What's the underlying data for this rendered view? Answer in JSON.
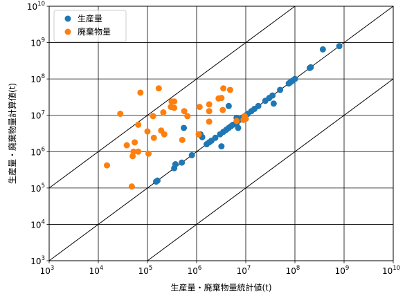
{
  "chart_data": {
    "type": "scatter",
    "xlabel": "生産量・廃棄物量統計値(t)",
    "ylabel": "生産量・廃棄物量計算値(t)",
    "x_scale": "log",
    "y_scale": "log",
    "xlim": [
      1000,
      10000000000
    ],
    "ylim": [
      1000,
      10000000000
    ],
    "x_ticks": [
      {
        "base": "10",
        "exp": "3",
        "value": 1000
      },
      {
        "base": "10",
        "exp": "4",
        "value": 10000
      },
      {
        "base": "10",
        "exp": "5",
        "value": 100000
      },
      {
        "base": "10",
        "exp": "6",
        "value": 1000000
      },
      {
        "base": "10",
        "exp": "7",
        "value": 10000000
      },
      {
        "base": "10",
        "exp": "8",
        "value": 100000000
      },
      {
        "base": "10",
        "exp": "9",
        "value": 1000000000
      },
      {
        "base": "10",
        "exp": "10",
        "value": 10000000000
      }
    ],
    "y_ticks": [
      {
        "base": "10",
        "exp": "3",
        "value": 1000
      },
      {
        "base": "10",
        "exp": "4",
        "value": 10000
      },
      {
        "base": "10",
        "exp": "5",
        "value": 100000
      },
      {
        "base": "10",
        "exp": "6",
        "value": 1000000
      },
      {
        "base": "10",
        "exp": "7",
        "value": 10000000
      },
      {
        "base": "10",
        "exp": "8",
        "value": 100000000
      },
      {
        "base": "10",
        "exp": "9",
        "value": 1000000000
      },
      {
        "base": "10",
        "exp": "10",
        "value": 10000000000
      }
    ],
    "grid": true,
    "legend_position": "top-left",
    "reference_lines": [
      {
        "ratio": 100
      },
      {
        "ratio": 1
      },
      {
        "ratio": 0.01
      }
    ],
    "series": [
      {
        "name": "生産量",
        "color": "#1f77b4",
        "points": [
          [
            150000,
            150000
          ],
          [
            160000,
            160000
          ],
          [
            350000,
            350000
          ],
          [
            370000,
            450000
          ],
          [
            500000,
            500000
          ],
          [
            550000,
            4500000
          ],
          [
            800000,
            800000
          ],
          [
            1200000,
            3000000
          ],
          [
            1300000,
            2500000
          ],
          [
            1600000,
            1600000
          ],
          [
            1800000,
            1800000
          ],
          [
            2000000,
            2000000
          ],
          [
            2400000,
            2400000
          ],
          [
            3000000,
            3000000
          ],
          [
            3200000,
            1400000
          ],
          [
            3500000,
            3500000
          ],
          [
            4000000,
            4000000
          ],
          [
            4500000,
            4500000
          ],
          [
            4500000,
            18000000
          ],
          [
            5000000,
            5000000
          ],
          [
            5500000,
            5500000
          ],
          [
            6500000,
            6000000
          ],
          [
            6500000,
            8500000
          ],
          [
            7000000,
            4500000
          ],
          [
            7500000,
            7500000
          ],
          [
            8000000,
            8000000
          ],
          [
            9000000,
            9000000
          ],
          [
            10000000,
            10000000
          ],
          [
            11000000,
            11000000
          ],
          [
            13000000,
            13000000
          ],
          [
            15000000,
            15000000
          ],
          [
            18000000,
            18000000
          ],
          [
            25000000,
            25000000
          ],
          [
            30000000,
            30000000
          ],
          [
            35000000,
            35000000
          ],
          [
            37000000,
            21000000
          ],
          [
            50000000,
            50000000
          ],
          [
            75000000,
            75000000
          ],
          [
            80000000,
            80000000
          ],
          [
            90000000,
            90000000
          ],
          [
            100000000,
            100000000
          ],
          [
            200000000,
            200000000
          ],
          [
            210000000,
            210000000
          ],
          [
            370000000,
            650000000
          ],
          [
            800000000,
            800000000
          ]
        ]
      },
      {
        "name": "廃棄物量",
        "color": "#ff7f0e",
        "points": [
          [
            15000,
            420000
          ],
          [
            28000,
            11000000
          ],
          [
            38000,
            1500000
          ],
          [
            48000,
            110000
          ],
          [
            50000,
            750000
          ],
          [
            52000,
            1000000
          ],
          [
            55000,
            1800000
          ],
          [
            65000,
            5500000
          ],
          [
            65000,
            1000000
          ],
          [
            72000,
            42000000
          ],
          [
            100000,
            3600000
          ],
          [
            105000,
            880000
          ],
          [
            130000,
            9500000
          ],
          [
            135000,
            2400000
          ],
          [
            170000,
            55000000
          ],
          [
            190000,
            3800000
          ],
          [
            210000,
            12000000
          ],
          [
            220000,
            3000000
          ],
          [
            300000,
            17000000
          ],
          [
            310000,
            24000000
          ],
          [
            350000,
            24000000
          ],
          [
            350000,
            16000000
          ],
          [
            510000,
            2100000
          ],
          [
            560000,
            13000000
          ],
          [
            650000,
            9500000
          ],
          [
            1100000,
            3000000
          ],
          [
            1150000,
            17000000
          ],
          [
            1800000,
            20000000
          ],
          [
            1800000,
            13000000
          ],
          [
            1800000,
            6700000
          ],
          [
            2800000,
            29000000
          ],
          [
            3200000,
            30000000
          ],
          [
            3400000,
            14000000
          ],
          [
            3500000,
            55000000
          ],
          [
            4800000,
            50000000
          ],
          [
            6500000,
            7000000
          ],
          [
            9000000,
            7500000
          ],
          [
            9500000,
            9500000
          ],
          [
            10000000,
            8000000
          ]
        ]
      }
    ]
  }
}
